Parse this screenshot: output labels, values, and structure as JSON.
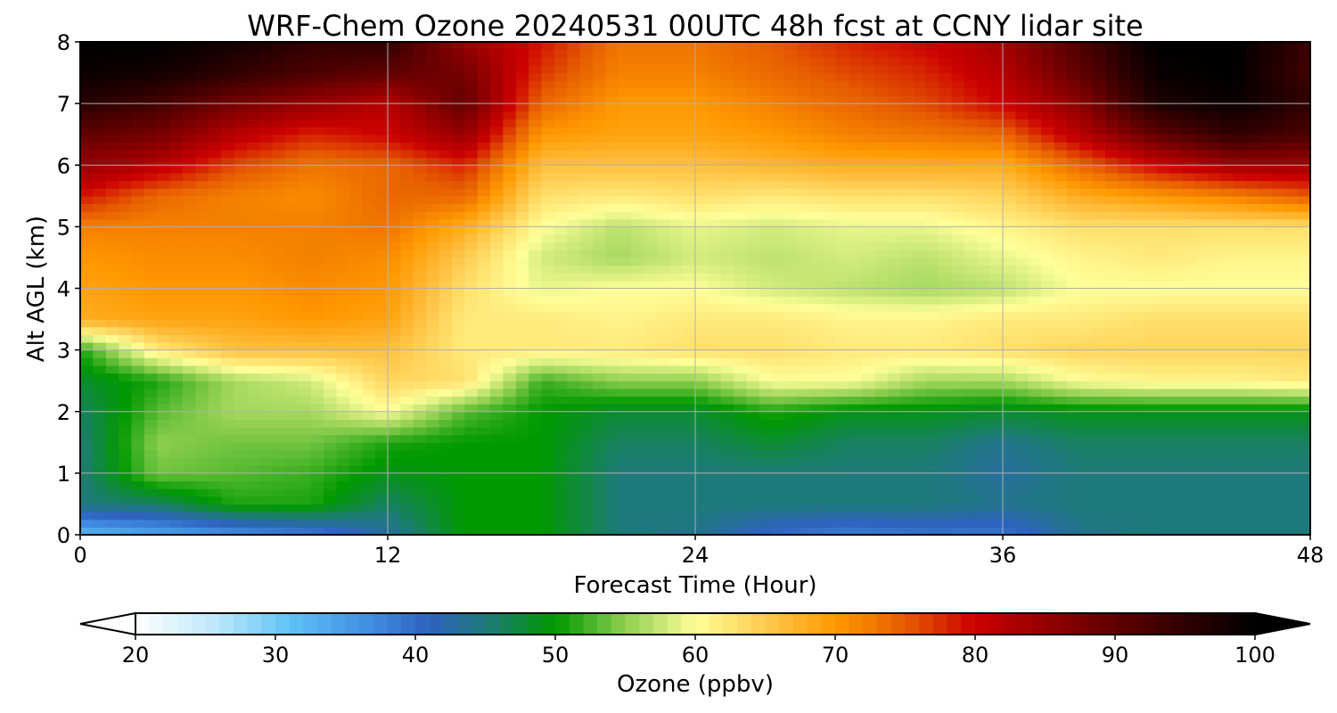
{
  "chart_data": {
    "type": "heatmap",
    "title": "WRF-Chem Ozone  20240531 00UTC 48h fcst at CCNY lidar site",
    "xlabel": "Forecast Time (Hour)",
    "ylabel": "Alt AGL (km)",
    "xlim": [
      0,
      48
    ],
    "ylim": [
      0,
      8
    ],
    "xticks": [
      "0",
      "12",
      "24",
      "36",
      "48"
    ],
    "yticks": [
      "0",
      "1",
      "2",
      "3",
      "4",
      "5",
      "6",
      "7",
      "8"
    ],
    "grid": true,
    "colorbar": {
      "label": "Ozone  (ppbv)",
      "min": 20,
      "max": 100,
      "ticks": [
        "20",
        "30",
        "40",
        "50",
        "60",
        "70",
        "80",
        "90",
        "100"
      ],
      "extend": "both",
      "stops": [
        {
          "v": 20,
          "c": "#ffffff"
        },
        {
          "v": 26,
          "c": "#b9e6fa"
        },
        {
          "v": 31,
          "c": "#5fc2f5"
        },
        {
          "v": 37,
          "c": "#3f8be0"
        },
        {
          "v": 41,
          "c": "#2e62c0"
        },
        {
          "v": 45,
          "c": "#1e7a7a"
        },
        {
          "v": 50,
          "c": "#009900"
        },
        {
          "v": 55,
          "c": "#8fcf50"
        },
        {
          "v": 60,
          "c": "#ffff99"
        },
        {
          "v": 66,
          "c": "#ffc040"
        },
        {
          "v": 70,
          "c": "#ff9900"
        },
        {
          "v": 75,
          "c": "#e65c00"
        },
        {
          "v": 80,
          "c": "#cc0000"
        },
        {
          "v": 90,
          "c": "#600000"
        },
        {
          "v": 100,
          "c": "#000000"
        }
      ]
    },
    "hours": [
      0,
      3,
      6,
      9,
      12,
      15,
      18,
      21,
      24,
      27,
      30,
      33,
      36,
      39,
      42,
      45,
      48
    ],
    "altitudes_km": [
      0,
      0.5,
      1,
      1.5,
      2,
      2.5,
      3,
      3.5,
      4,
      4.5,
      5,
      5.5,
      6,
      6.5,
      7,
      7.5,
      8
    ],
    "values_ppbv": [
      [
        32,
        34,
        36,
        38,
        43,
        50,
        50,
        45,
        44,
        40,
        38,
        39,
        39,
        44,
        45,
        45,
        45
      ],
      [
        45,
        46,
        51,
        51,
        46,
        50,
        50,
        45,
        45,
        45,
        45,
        45,
        44,
        45,
        45,
        45,
        45
      ],
      [
        45,
        54,
        53,
        52,
        49,
        50,
        50,
        45,
        45,
        45,
        45,
        45,
        43,
        45,
        45,
        45,
        45
      ],
      [
        45,
        55,
        54,
        54,
        51,
        50,
        50,
        46,
        46,
        48,
        46,
        46,
        44,
        46,
        46,
        46,
        46
      ],
      [
        46,
        53,
        56,
        56,
        60,
        53,
        50,
        48,
        48,
        51,
        49,
        49,
        48,
        49,
        49,
        49,
        49
      ],
      [
        48,
        51,
        56,
        58,
        64,
        63,
        52,
        55,
        55,
        60,
        60,
        56,
        56,
        60,
        61,
        61,
        62
      ],
      [
        51,
        62,
        66,
        66,
        66,
        62,
        62,
        62,
        63,
        63,
        62,
        62,
        63,
        64,
        64,
        64,
        64
      ],
      [
        68,
        69,
        69,
        70,
        69,
        62,
        62,
        61,
        62,
        62,
        61,
        61,
        62,
        62,
        63,
        63,
        63
      ],
      [
        69,
        70,
        70,
        71,
        70,
        63,
        59,
        60,
        60,
        58,
        57,
        56,
        57,
        60,
        60,
        60,
        60
      ],
      [
        70,
        71,
        71,
        72,
        71,
        65,
        58,
        56,
        58,
        57,
        58,
        57,
        59,
        61,
        62,
        61,
        61
      ],
      [
        72,
        72,
        72,
        72,
        73,
        68,
        60,
        57,
        59,
        58,
        59,
        59,
        61,
        63,
        63,
        63,
        63
      ],
      [
        79,
        74,
        72,
        71,
        74,
        74,
        63,
        62,
        63,
        62,
        63,
        63,
        64,
        68,
        70,
        72,
        75
      ],
      [
        85,
        82,
        76,
        73,
        74,
        78,
        66,
        66,
        66,
        67,
        68,
        68,
        68,
        74,
        80,
        84,
        84
      ],
      [
        90,
        88,
        82,
        78,
        80,
        85,
        70,
        69,
        69,
        70,
        72,
        73,
        74,
        82,
        90,
        95,
        92
      ],
      [
        96,
        93,
        88,
        85,
        82,
        90,
        74,
        70,
        70,
        72,
        74,
        76,
        80,
        86,
        97,
        99,
        95
      ],
      [
        99,
        98,
        95,
        92,
        90,
        88,
        77,
        72,
        72,
        74,
        76,
        78,
        82,
        90,
        99,
        100,
        93
      ],
      [
        100,
        100,
        98,
        95,
        95,
        85,
        79,
        73,
        73,
        75,
        78,
        80,
        84,
        92,
        100,
        100,
        94
      ]
    ]
  }
}
